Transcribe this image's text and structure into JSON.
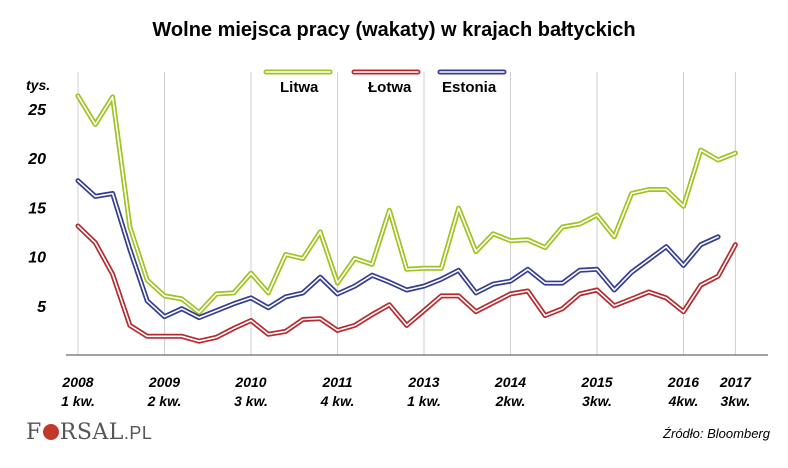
{
  "chart_data": {
    "type": "line",
    "title": "Wolne miejsca pracy (wakaty) w krajach bałtyckich",
    "unit_label": "tys.",
    "ylim": [
      0,
      27
    ],
    "yticks": [
      5,
      10,
      15,
      20,
      25
    ],
    "grid": "vertical",
    "legend_position": "top",
    "x_labels": [
      {
        "year": "2008",
        "quarter": "1 kw."
      },
      {
        "year": "2009",
        "quarter": "2 kw."
      },
      {
        "year": "2010",
        "quarter": "3 kw."
      },
      {
        "year": "2011",
        "quarter": "4 kw."
      },
      {
        "year": "2013",
        "quarter": "1 kw."
      },
      {
        "year": "2014",
        "quarter": "2kw."
      },
      {
        "year": "2015",
        "quarter": "3kw."
      },
      {
        "year": "2016",
        "quarter": "4kw."
      },
      {
        "year": "2017",
        "quarter": "3kw."
      }
    ],
    "x_label_index": [
      0,
      5,
      10,
      15,
      20,
      25,
      30,
      35,
      38
    ],
    "series": [
      {
        "name": "Litwa",
        "color": "#9fc31f",
        "values": [
          26.3,
          23.4,
          26.2,
          13.0,
          7.6,
          6.0,
          5.7,
          4.3,
          6.2,
          6.3,
          8.3,
          6.3,
          10.2,
          9.8,
          12.5,
          7.3,
          9.8,
          9.2,
          14.7,
          8.7,
          8.8,
          8.8,
          14.9,
          10.5,
          12.3,
          11.6,
          11.7,
          10.9,
          13.0,
          13.3,
          14.2,
          12.0,
          16.4,
          16.8,
          16.8,
          15.1,
          20.8,
          19.8,
          20.5
        ]
      },
      {
        "name": "Łotwa",
        "color": "#b52a2f",
        "values": [
          13.1,
          11.4,
          8.2,
          3.0,
          1.9,
          1.9,
          1.9,
          1.4,
          1.8,
          2.7,
          3.5,
          2.1,
          2.4,
          3.6,
          3.7,
          2.5,
          3.0,
          4.1,
          5.1,
          3.0,
          4.5,
          6.0,
          6.0,
          4.4,
          5.3,
          6.2,
          6.5,
          4.0,
          4.7,
          6.2,
          6.6,
          5.0,
          5.7,
          6.4,
          5.8,
          4.4,
          7.1,
          8.0,
          11.2
        ]
      },
      {
        "name": "Estonia",
        "color": "#343d8e",
        "values": [
          17.7,
          16.1,
          16.4,
          10.7,
          5.5,
          3.9,
          4.7,
          3.8,
          4.5,
          5.2,
          5.8,
          4.8,
          5.9,
          6.3,
          7.9,
          6.2,
          7.0,
          8.1,
          7.4,
          6.6,
          7.0,
          7.7,
          8.6,
          6.3,
          7.2,
          7.5,
          8.7,
          7.3,
          7.3,
          8.6,
          8.7,
          6.6,
          8.4,
          9.7,
          11.0,
          9.1,
          11.2,
          12.0
        ]
      }
    ],
    "source": "Źródło: Bloomberg"
  },
  "brand": {
    "name": "FORSAL",
    "suffix": ".PL"
  }
}
